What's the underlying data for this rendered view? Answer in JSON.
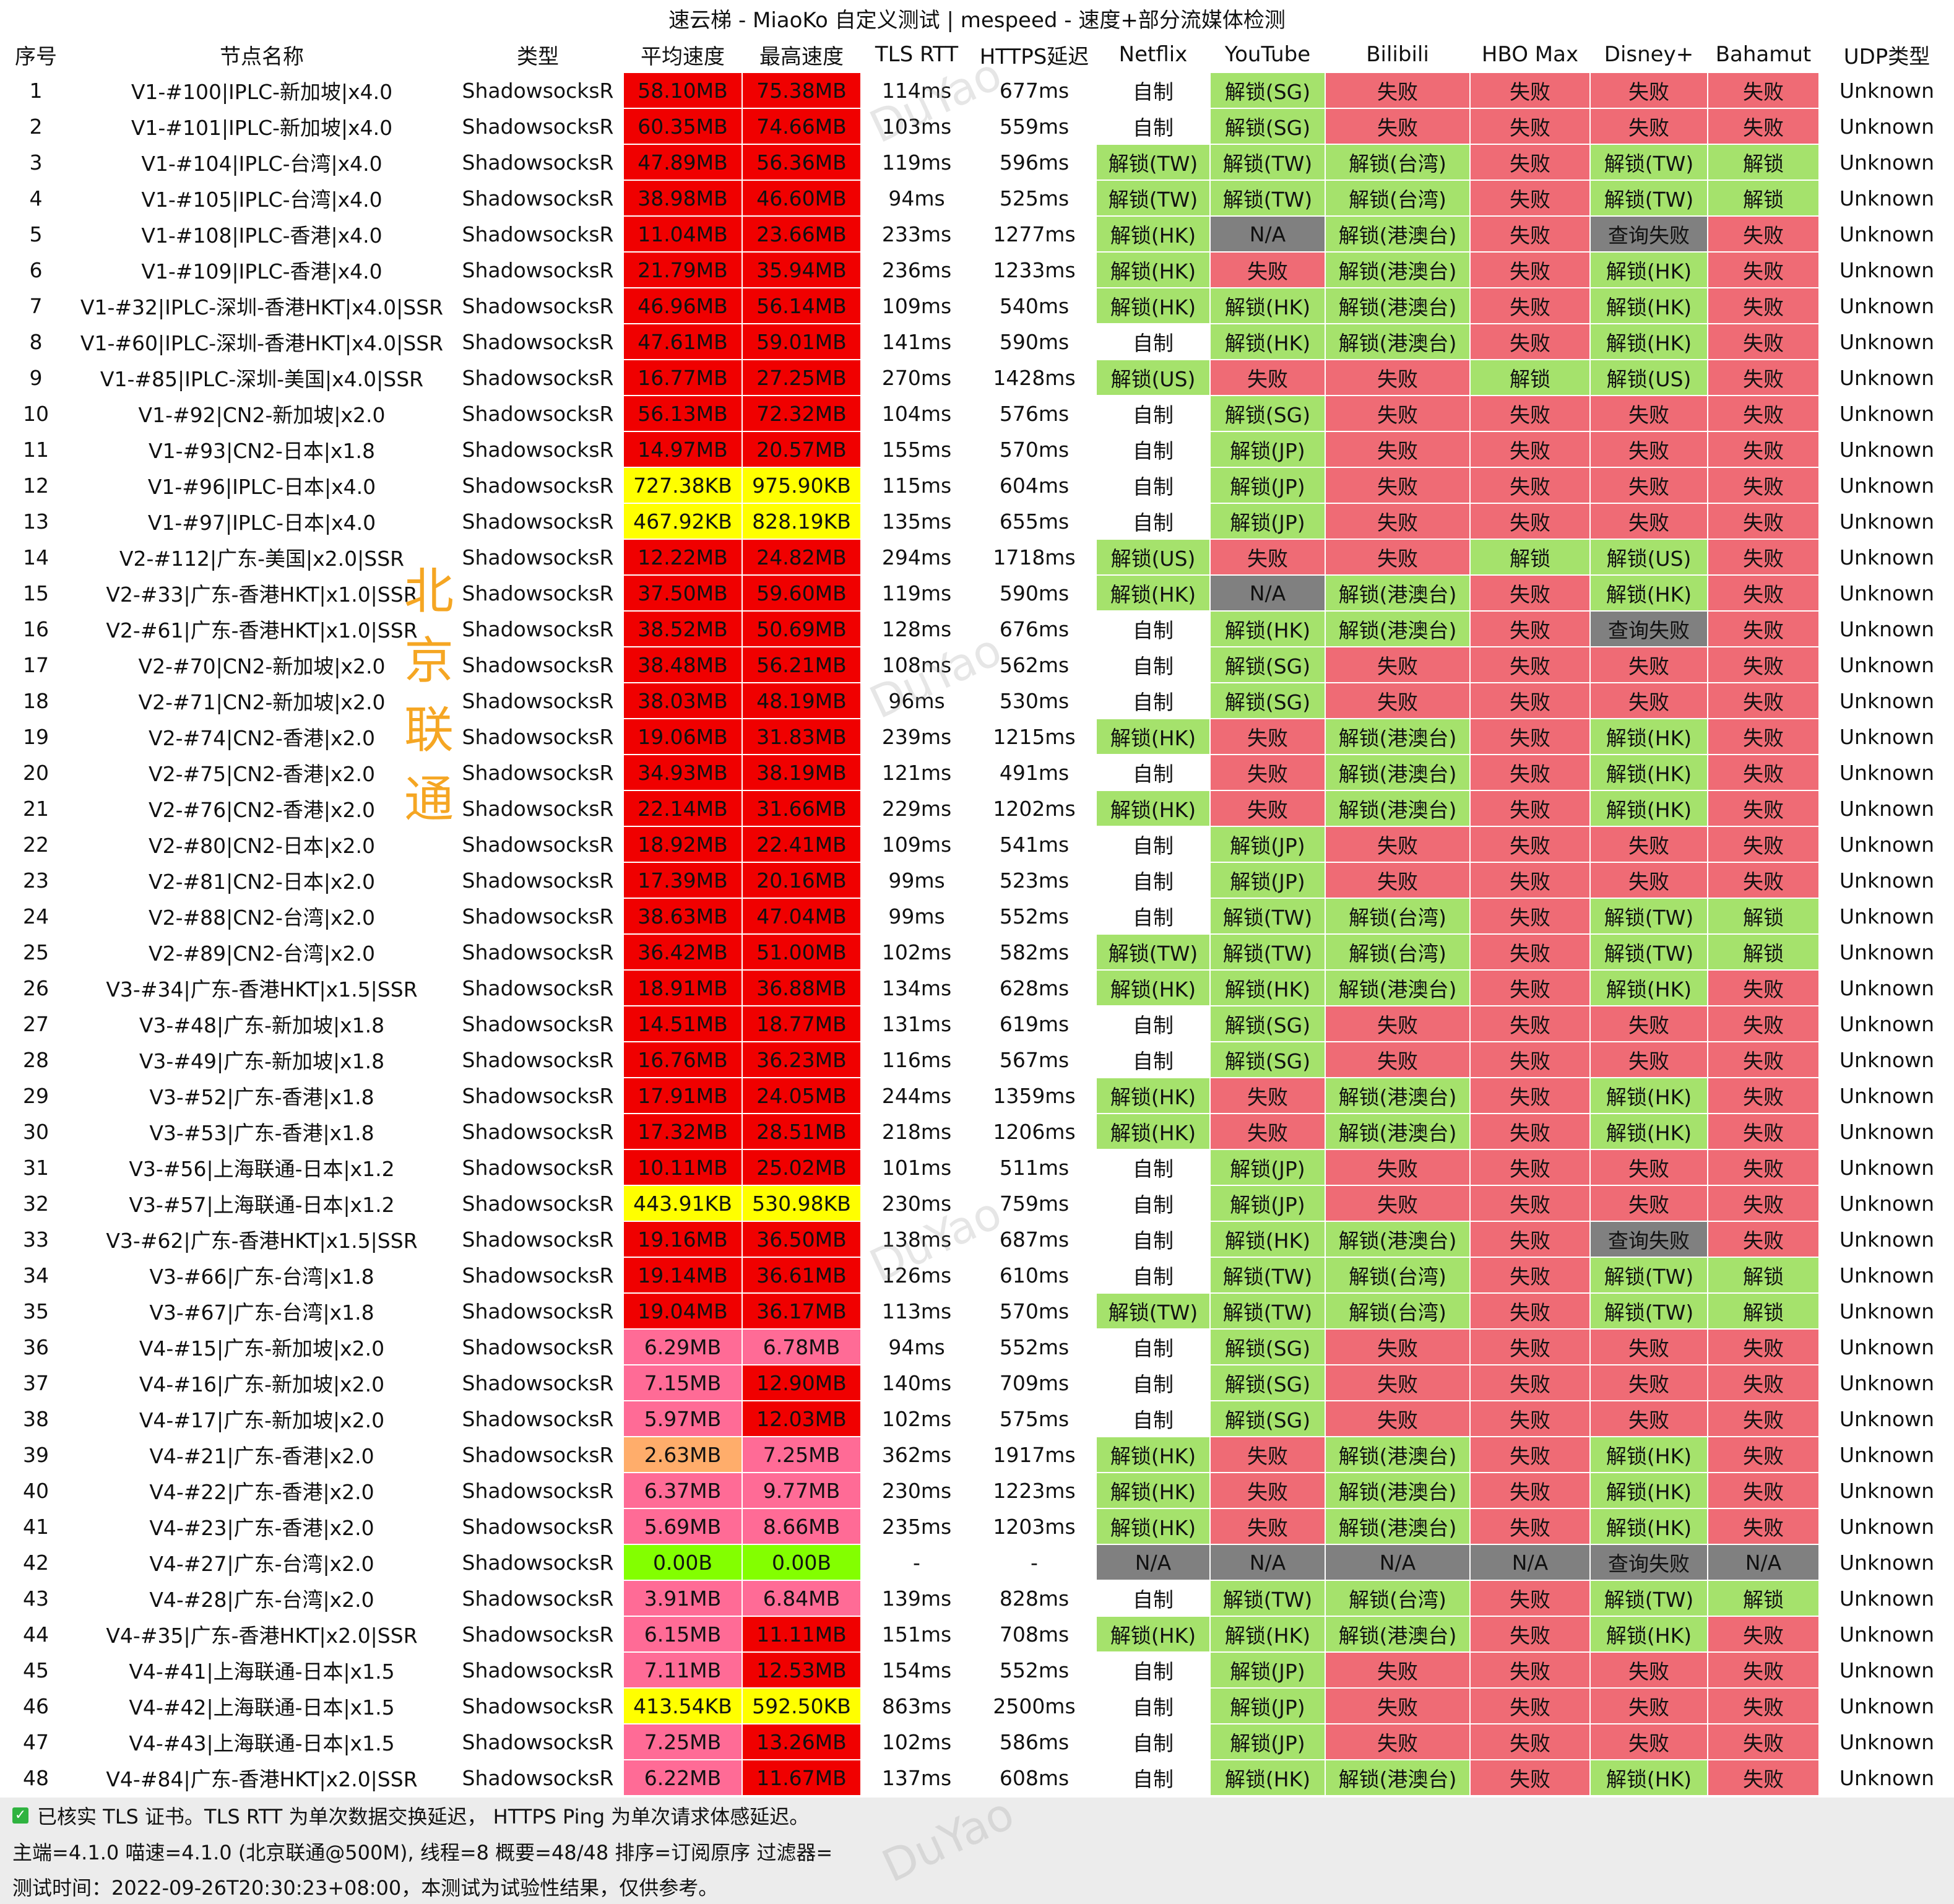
{
  "title": "速云梯 - MiaoKo 自定义测试 | mespeed - 速度+部分流媒体检测",
  "headers": [
    "序号",
    "节点名称",
    "类型",
    "平均速度",
    "最高速度",
    "TLS RTT",
    "HTTPS延迟",
    "Netflix",
    "YouTube",
    "Bilibili",
    "HBO Max",
    "Disney+",
    "Bahamut",
    "UDP类型"
  ],
  "side_label": "北京联通",
  "watermark": "DuYao",
  "colors": {
    "speed_red": "#f00000",
    "speed_pink": "#ff6b96",
    "speed_orange": "#ffad6b",
    "speed_yellow": "#ffff00",
    "speed_lime": "#83ff00",
    "unlock_green": "#a5e26c",
    "fail_red": "#ef6b75",
    "na_gray": "#808080"
  },
  "rows": [
    [
      "1",
      "V1-#100|IPLC-新加坡|x4.0",
      "ShadowsocksR",
      "58.10MB",
      "75.38MB",
      "114ms",
      "677ms",
      "自制",
      "解锁(SG)",
      "失败",
      "失败",
      "失败",
      "失败",
      "Unknown"
    ],
    [
      "2",
      "V1-#101|IPLC-新加坡|x4.0",
      "ShadowsocksR",
      "60.35MB",
      "74.66MB",
      "103ms",
      "559ms",
      "自制",
      "解锁(SG)",
      "失败",
      "失败",
      "失败",
      "失败",
      "Unknown"
    ],
    [
      "3",
      "V1-#104|IPLC-台湾|x4.0",
      "ShadowsocksR",
      "47.89MB",
      "56.36MB",
      "119ms",
      "596ms",
      "解锁(TW)",
      "解锁(TW)",
      "解锁(台湾)",
      "失败",
      "解锁(TW)",
      "解锁",
      "Unknown"
    ],
    [
      "4",
      "V1-#105|IPLC-台湾|x4.0",
      "ShadowsocksR",
      "38.98MB",
      "46.60MB",
      "94ms",
      "525ms",
      "解锁(TW)",
      "解锁(TW)",
      "解锁(台湾)",
      "失败",
      "解锁(TW)",
      "解锁",
      "Unknown"
    ],
    [
      "5",
      "V1-#108|IPLC-香港|x4.0",
      "ShadowsocksR",
      "11.04MB",
      "23.66MB",
      "233ms",
      "1277ms",
      "解锁(HK)",
      "N/A",
      "解锁(港澳台)",
      "失败",
      "查询失败",
      "失败",
      "Unknown"
    ],
    [
      "6",
      "V1-#109|IPLC-香港|x4.0",
      "ShadowsocksR",
      "21.79MB",
      "35.94MB",
      "236ms",
      "1233ms",
      "解锁(HK)",
      "失败",
      "解锁(港澳台)",
      "失败",
      "解锁(HK)",
      "失败",
      "Unknown"
    ],
    [
      "7",
      "V1-#32|IPLC-深圳-香港HKT|x4.0|SSR",
      "ShadowsocksR",
      "46.96MB",
      "56.14MB",
      "109ms",
      "540ms",
      "解锁(HK)",
      "解锁(HK)",
      "解锁(港澳台)",
      "失败",
      "解锁(HK)",
      "失败",
      "Unknown"
    ],
    [
      "8",
      "V1-#60|IPLC-深圳-香港HKT|x4.0|SSR",
      "ShadowsocksR",
      "47.61MB",
      "59.01MB",
      "141ms",
      "590ms",
      "自制",
      "解锁(HK)",
      "解锁(港澳台)",
      "失败",
      "解锁(HK)",
      "失败",
      "Unknown"
    ],
    [
      "9",
      "V1-#85|IPLC-深圳-美国|x4.0|SSR",
      "ShadowsocksR",
      "16.77MB",
      "27.25MB",
      "270ms",
      "1428ms",
      "解锁(US)",
      "失败",
      "失败",
      "解锁",
      "解锁(US)",
      "失败",
      "Unknown"
    ],
    [
      "10",
      "V1-#92|CN2-新加坡|x2.0",
      "ShadowsocksR",
      "56.13MB",
      "72.32MB",
      "104ms",
      "576ms",
      "自制",
      "解锁(SG)",
      "失败",
      "失败",
      "失败",
      "失败",
      "Unknown"
    ],
    [
      "11",
      "V1-#93|CN2-日本|x1.8",
      "ShadowsocksR",
      "14.97MB",
      "20.57MB",
      "155ms",
      "570ms",
      "自制",
      "解锁(JP)",
      "失败",
      "失败",
      "失败",
      "失败",
      "Unknown"
    ],
    [
      "12",
      "V1-#96|IPLC-日本|x4.0",
      "ShadowsocksR",
      "727.38KB",
      "975.90KB",
      "115ms",
      "604ms",
      "自制",
      "解锁(JP)",
      "失败",
      "失败",
      "失败",
      "失败",
      "Unknown"
    ],
    [
      "13",
      "V1-#97|IPLC-日本|x4.0",
      "ShadowsocksR",
      "467.92KB",
      "828.19KB",
      "135ms",
      "655ms",
      "自制",
      "解锁(JP)",
      "失败",
      "失败",
      "失败",
      "失败",
      "Unknown"
    ],
    [
      "14",
      "V2-#112|广东-美国|x2.0|SSR",
      "ShadowsocksR",
      "12.22MB",
      "24.82MB",
      "294ms",
      "1718ms",
      "解锁(US)",
      "失败",
      "失败",
      "解锁",
      "解锁(US)",
      "失败",
      "Unknown"
    ],
    [
      "15",
      "V2-#33|广东-香港HKT|x1.0|SSR",
      "ShadowsocksR",
      "37.50MB",
      "59.60MB",
      "119ms",
      "590ms",
      "解锁(HK)",
      "N/A",
      "解锁(港澳台)",
      "失败",
      "解锁(HK)",
      "失败",
      "Unknown"
    ],
    [
      "16",
      "V2-#61|广东-香港HKT|x1.0|SSR",
      "ShadowsocksR",
      "38.52MB",
      "50.69MB",
      "128ms",
      "676ms",
      "自制",
      "解锁(HK)",
      "解锁(港澳台)",
      "失败",
      "查询失败",
      "失败",
      "Unknown"
    ],
    [
      "17",
      "V2-#70|CN2-新加坡|x2.0",
      "ShadowsocksR",
      "38.48MB",
      "56.21MB",
      "108ms",
      "562ms",
      "自制",
      "解锁(SG)",
      "失败",
      "失败",
      "失败",
      "失败",
      "Unknown"
    ],
    [
      "18",
      "V2-#71|CN2-新加坡|x2.0",
      "ShadowsocksR",
      "38.03MB",
      "48.19MB",
      "96ms",
      "530ms",
      "自制",
      "解锁(SG)",
      "失败",
      "失败",
      "失败",
      "失败",
      "Unknown"
    ],
    [
      "19",
      "V2-#74|CN2-香港|x2.0",
      "ShadowsocksR",
      "19.06MB",
      "31.83MB",
      "239ms",
      "1215ms",
      "解锁(HK)",
      "失败",
      "解锁(港澳台)",
      "失败",
      "解锁(HK)",
      "失败",
      "Unknown"
    ],
    [
      "20",
      "V2-#75|CN2-香港|x2.0",
      "ShadowsocksR",
      "34.93MB",
      "38.19MB",
      "121ms",
      "491ms",
      "自制",
      "失败",
      "解锁(港澳台)",
      "失败",
      "解锁(HK)",
      "失败",
      "Unknown"
    ],
    [
      "21",
      "V2-#76|CN2-香港|x2.0",
      "ShadowsocksR",
      "22.14MB",
      "31.66MB",
      "229ms",
      "1202ms",
      "解锁(HK)",
      "失败",
      "解锁(港澳台)",
      "失败",
      "解锁(HK)",
      "失败",
      "Unknown"
    ],
    [
      "22",
      "V2-#80|CN2-日本|x2.0",
      "ShadowsocksR",
      "18.92MB",
      "22.41MB",
      "109ms",
      "541ms",
      "自制",
      "解锁(JP)",
      "失败",
      "失败",
      "失败",
      "失败",
      "Unknown"
    ],
    [
      "23",
      "V2-#81|CN2-日本|x2.0",
      "ShadowsocksR",
      "17.39MB",
      "20.16MB",
      "99ms",
      "523ms",
      "自制",
      "解锁(JP)",
      "失败",
      "失败",
      "失败",
      "失败",
      "Unknown"
    ],
    [
      "24",
      "V2-#88|CN2-台湾|x2.0",
      "ShadowsocksR",
      "38.63MB",
      "47.04MB",
      "99ms",
      "552ms",
      "自制",
      "解锁(TW)",
      "解锁(台湾)",
      "失败",
      "解锁(TW)",
      "解锁",
      "Unknown"
    ],
    [
      "25",
      "V2-#89|CN2-台湾|x2.0",
      "ShadowsocksR",
      "36.42MB",
      "51.00MB",
      "102ms",
      "582ms",
      "解锁(TW)",
      "解锁(TW)",
      "解锁(台湾)",
      "失败",
      "解锁(TW)",
      "解锁",
      "Unknown"
    ],
    [
      "26",
      "V3-#34|广东-香港HKT|x1.5|SSR",
      "ShadowsocksR",
      "18.91MB",
      "36.88MB",
      "134ms",
      "628ms",
      "解锁(HK)",
      "解锁(HK)",
      "解锁(港澳台)",
      "失败",
      "解锁(HK)",
      "失败",
      "Unknown"
    ],
    [
      "27",
      "V3-#48|广东-新加坡|x1.8",
      "ShadowsocksR",
      "14.51MB",
      "18.77MB",
      "131ms",
      "619ms",
      "自制",
      "解锁(SG)",
      "失败",
      "失败",
      "失败",
      "失败",
      "Unknown"
    ],
    [
      "28",
      "V3-#49|广东-新加坡|x1.8",
      "ShadowsocksR",
      "16.76MB",
      "36.23MB",
      "116ms",
      "567ms",
      "自制",
      "解锁(SG)",
      "失败",
      "失败",
      "失败",
      "失败",
      "Unknown"
    ],
    [
      "29",
      "V3-#52|广东-香港|x1.8",
      "ShadowsocksR",
      "17.91MB",
      "24.05MB",
      "244ms",
      "1359ms",
      "解锁(HK)",
      "失败",
      "解锁(港澳台)",
      "失败",
      "解锁(HK)",
      "失败",
      "Unknown"
    ],
    [
      "30",
      "V3-#53|广东-香港|x1.8",
      "ShadowsocksR",
      "17.32MB",
      "28.51MB",
      "218ms",
      "1206ms",
      "解锁(HK)",
      "失败",
      "解锁(港澳台)",
      "失败",
      "解锁(HK)",
      "失败",
      "Unknown"
    ],
    [
      "31",
      "V3-#56|上海联通-日本|x1.2",
      "ShadowsocksR",
      "10.11MB",
      "25.02MB",
      "101ms",
      "511ms",
      "自制",
      "解锁(JP)",
      "失败",
      "失败",
      "失败",
      "失败",
      "Unknown"
    ],
    [
      "32",
      "V3-#57|上海联通-日本|x1.2",
      "ShadowsocksR",
      "443.91KB",
      "530.98KB",
      "230ms",
      "759ms",
      "自制",
      "解锁(JP)",
      "失败",
      "失败",
      "失败",
      "失败",
      "Unknown"
    ],
    [
      "33",
      "V3-#62|广东-香港HKT|x1.5|SSR",
      "ShadowsocksR",
      "19.16MB",
      "36.50MB",
      "138ms",
      "687ms",
      "自制",
      "解锁(HK)",
      "解锁(港澳台)",
      "失败",
      "查询失败",
      "失败",
      "Unknown"
    ],
    [
      "34",
      "V3-#66|广东-台湾|x1.8",
      "ShadowsocksR",
      "19.14MB",
      "36.61MB",
      "126ms",
      "610ms",
      "自制",
      "解锁(TW)",
      "解锁(台湾)",
      "失败",
      "解锁(TW)",
      "解锁",
      "Unknown"
    ],
    [
      "35",
      "V3-#67|广东-台湾|x1.8",
      "ShadowsocksR",
      "19.04MB",
      "36.17MB",
      "113ms",
      "570ms",
      "解锁(TW)",
      "解锁(TW)",
      "解锁(台湾)",
      "失败",
      "解锁(TW)",
      "解锁",
      "Unknown"
    ],
    [
      "36",
      "V4-#15|广东-新加坡|x2.0",
      "ShadowsocksR",
      "6.29MB",
      "6.78MB",
      "94ms",
      "552ms",
      "自制",
      "解锁(SG)",
      "失败",
      "失败",
      "失败",
      "失败",
      "Unknown"
    ],
    [
      "37",
      "V4-#16|广东-新加坡|x2.0",
      "ShadowsocksR",
      "7.15MB",
      "12.90MB",
      "140ms",
      "709ms",
      "自制",
      "解锁(SG)",
      "失败",
      "失败",
      "失败",
      "失败",
      "Unknown"
    ],
    [
      "38",
      "V4-#17|广东-新加坡|x2.0",
      "ShadowsocksR",
      "5.97MB",
      "12.03MB",
      "102ms",
      "575ms",
      "自制",
      "解锁(SG)",
      "失败",
      "失败",
      "失败",
      "失败",
      "Unknown"
    ],
    [
      "39",
      "V4-#21|广东-香港|x2.0",
      "ShadowsocksR",
      "2.63MB",
      "7.25MB",
      "362ms",
      "1917ms",
      "解锁(HK)",
      "失败",
      "解锁(港澳台)",
      "失败",
      "解锁(HK)",
      "失败",
      "Unknown"
    ],
    [
      "40",
      "V4-#22|广东-香港|x2.0",
      "ShadowsocksR",
      "6.37MB",
      "9.77MB",
      "230ms",
      "1223ms",
      "解锁(HK)",
      "失败",
      "解锁(港澳台)",
      "失败",
      "解锁(HK)",
      "失败",
      "Unknown"
    ],
    [
      "41",
      "V4-#23|广东-香港|x2.0",
      "ShadowsocksR",
      "5.69MB",
      "8.66MB",
      "235ms",
      "1203ms",
      "解锁(HK)",
      "失败",
      "解锁(港澳台)",
      "失败",
      "解锁(HK)",
      "失败",
      "Unknown"
    ],
    [
      "42",
      "V4-#27|广东-台湾|x2.0",
      "ShadowsocksR",
      "0.00B",
      "0.00B",
      "-",
      "-",
      "N/A",
      "N/A",
      "N/A",
      "N/A",
      "查询失败",
      "N/A",
      "Unknown"
    ],
    [
      "43",
      "V4-#28|广东-台湾|x2.0",
      "ShadowsocksR",
      "3.91MB",
      "6.84MB",
      "139ms",
      "828ms",
      "自制",
      "解锁(TW)",
      "解锁(台湾)",
      "失败",
      "解锁(TW)",
      "解锁",
      "Unknown"
    ],
    [
      "44",
      "V4-#35|广东-香港HKT|x2.0|SSR",
      "ShadowsocksR",
      "6.15MB",
      "11.11MB",
      "151ms",
      "708ms",
      "解锁(HK)",
      "解锁(HK)",
      "解锁(港澳台)",
      "失败",
      "解锁(HK)",
      "失败",
      "Unknown"
    ],
    [
      "45",
      "V4-#41|上海联通-日本|x1.5",
      "ShadowsocksR",
      "7.11MB",
      "12.53MB",
      "154ms",
      "552ms",
      "自制",
      "解锁(JP)",
      "失败",
      "失败",
      "失败",
      "失败",
      "Unknown"
    ],
    [
      "46",
      "V4-#42|上海联通-日本|x1.5",
      "ShadowsocksR",
      "413.54KB",
      "592.50KB",
      "863ms",
      "2500ms",
      "自制",
      "解锁(JP)",
      "失败",
      "失败",
      "失败",
      "失败",
      "Unknown"
    ],
    [
      "47",
      "V4-#43|上海联通-日本|x1.5",
      "ShadowsocksR",
      "7.25MB",
      "13.26MB",
      "102ms",
      "586ms",
      "自制",
      "解锁(JP)",
      "失败",
      "失败",
      "失败",
      "失败",
      "Unknown"
    ],
    [
      "48",
      "V4-#84|广东-香港HKT|x2.0|SSR",
      "ShadowsocksR",
      "6.22MB",
      "11.67MB",
      "137ms",
      "608ms",
      "自制",
      "解锁(HK)",
      "解锁(港澳台)",
      "失败",
      "解锁(HK)",
      "失败",
      "Unknown"
    ]
  ],
  "footer": {
    "note": "已核实 TLS 证书。TLS RTT 为单次数据交换延迟， HTTPS Ping 为单次请求体感延迟。",
    "info": "主端=4.1.0 喵速=4.1.0 (北京联通@500M), 线程=8 概要=48/48 排序=订阅原序 过滤器=",
    "time": "测试时间：2022-09-26T20:30:23+08:00，本测试为试验性结果，仅供参考。"
  }
}
